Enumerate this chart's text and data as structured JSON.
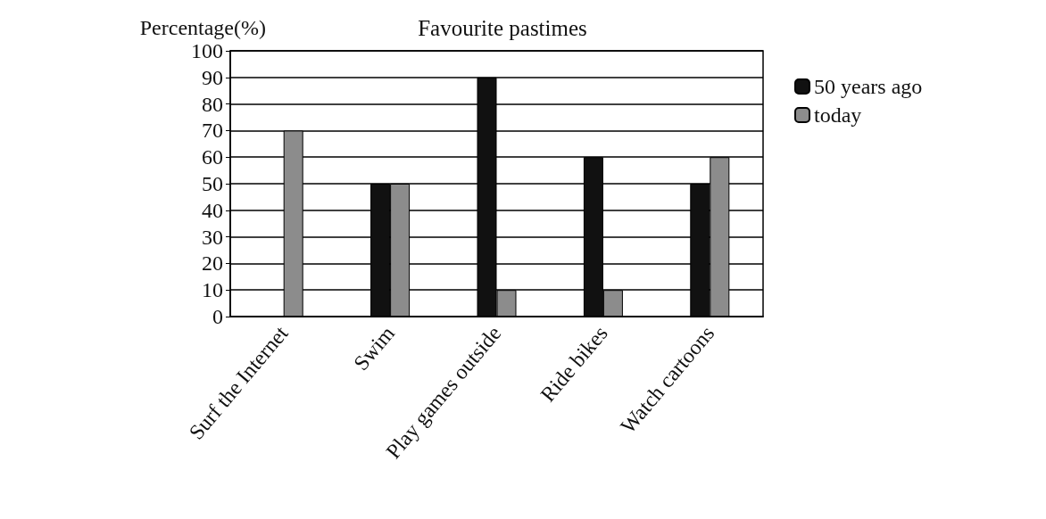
{
  "chart_data": {
    "type": "bar",
    "title": "Favourite pastimes",
    "ylabel": "Percentage(%)",
    "categories": [
      "Surf the Internet",
      "Swim",
      "Play games outside",
      "Ride bikes",
      "Watch cartoons"
    ],
    "series": [
      {
        "name": "50 years ago",
        "color": "#111111",
        "values": [
          null,
          50,
          90,
          60,
          50
        ]
      },
      {
        "name": "today",
        "color": "#8c8c8c",
        "values": [
          70,
          50,
          10,
          10,
          60
        ]
      }
    ],
    "ylim": [
      0,
      100
    ],
    "yticks": [
      0,
      10,
      20,
      30,
      40,
      50,
      60,
      70,
      80,
      90,
      100
    ],
    "grid": "y",
    "legend": "top right"
  }
}
